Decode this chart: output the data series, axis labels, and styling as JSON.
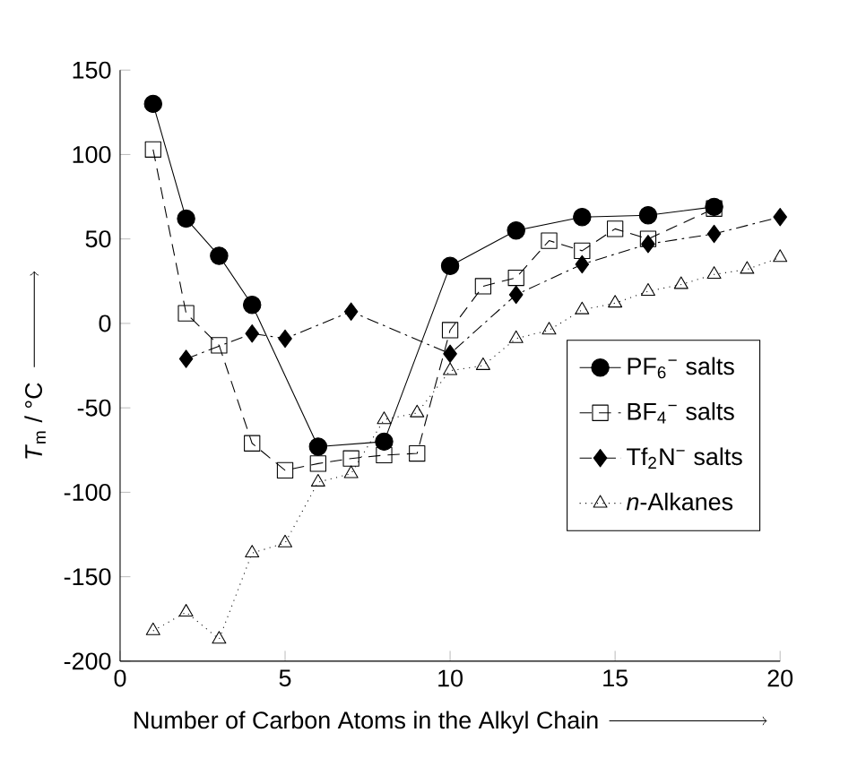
{
  "chart_data": {
    "type": "line",
    "xlabel": "Number of Carbon Atoms in the Alkyl Chain",
    "ylabel": "*T*$_{m}$ / °C",
    "xlim": [
      0,
      20
    ],
    "ylim": [
      -200,
      150
    ],
    "xticks": [
      0,
      5,
      10,
      15,
      20
    ],
    "yticks": [
      -200,
      -150,
      -100,
      -50,
      0,
      50,
      100,
      150
    ],
    "legend": "bottom right",
    "grid": false,
    "series": [
      {
        "name": "PF$_{6}$$^{−}$ salts",
        "color": "#000000",
        "marker": "circle",
        "line_style": "solid",
        "x": [
          1,
          2,
          3,
          4,
          6,
          8,
          10,
          12,
          14,
          16,
          18
        ],
        "values": [
          130,
          62,
          40,
          11,
          -73,
          -70,
          34,
          55,
          63,
          64,
          69
        ]
      },
      {
        "name": "BF$_{4}$$^{−}$ salts",
        "color": "#000000",
        "marker": "square",
        "line_style": "dashed",
        "x": [
          1,
          2,
          3,
          4,
          5,
          6,
          7,
          8,
          9,
          10,
          11,
          12,
          13,
          14,
          15,
          16,
          18
        ],
        "values": [
          103,
          6,
          -13,
          -71,
          -87,
          -83,
          -80,
          -78,
          -77,
          -4,
          22,
          27,
          49,
          43,
          56,
          50,
          68
        ]
      },
      {
        "name": "Tf$_{2}$N$^{−}$ salts",
        "color": "#000000",
        "marker": "diamond",
        "line_style": "dashdot",
        "x": [
          2,
          4,
          5,
          7,
          10,
          12,
          14,
          16,
          18,
          20
        ],
        "values": [
          -21,
          -6,
          -9,
          7,
          -18,
          17,
          35,
          47,
          53,
          63
        ]
      },
      {
        "name": "*n*-Alkanes",
        "color": "#000000",
        "marker": "triangle",
        "line_style": "dotted",
        "x": [
          1,
          2,
          3,
          4,
          5,
          6,
          7,
          8,
          9,
          10,
          11,
          12,
          13,
          14,
          15,
          16,
          17,
          18,
          19,
          20
        ],
        "values": [
          -182,
          -171,
          -187,
          -136,
          -130,
          -94,
          -89,
          -57,
          -53,
          -28,
          -25,
          -9,
          -4,
          8,
          12,
          19,
          23,
          29,
          32,
          39
        ]
      }
    ]
  }
}
